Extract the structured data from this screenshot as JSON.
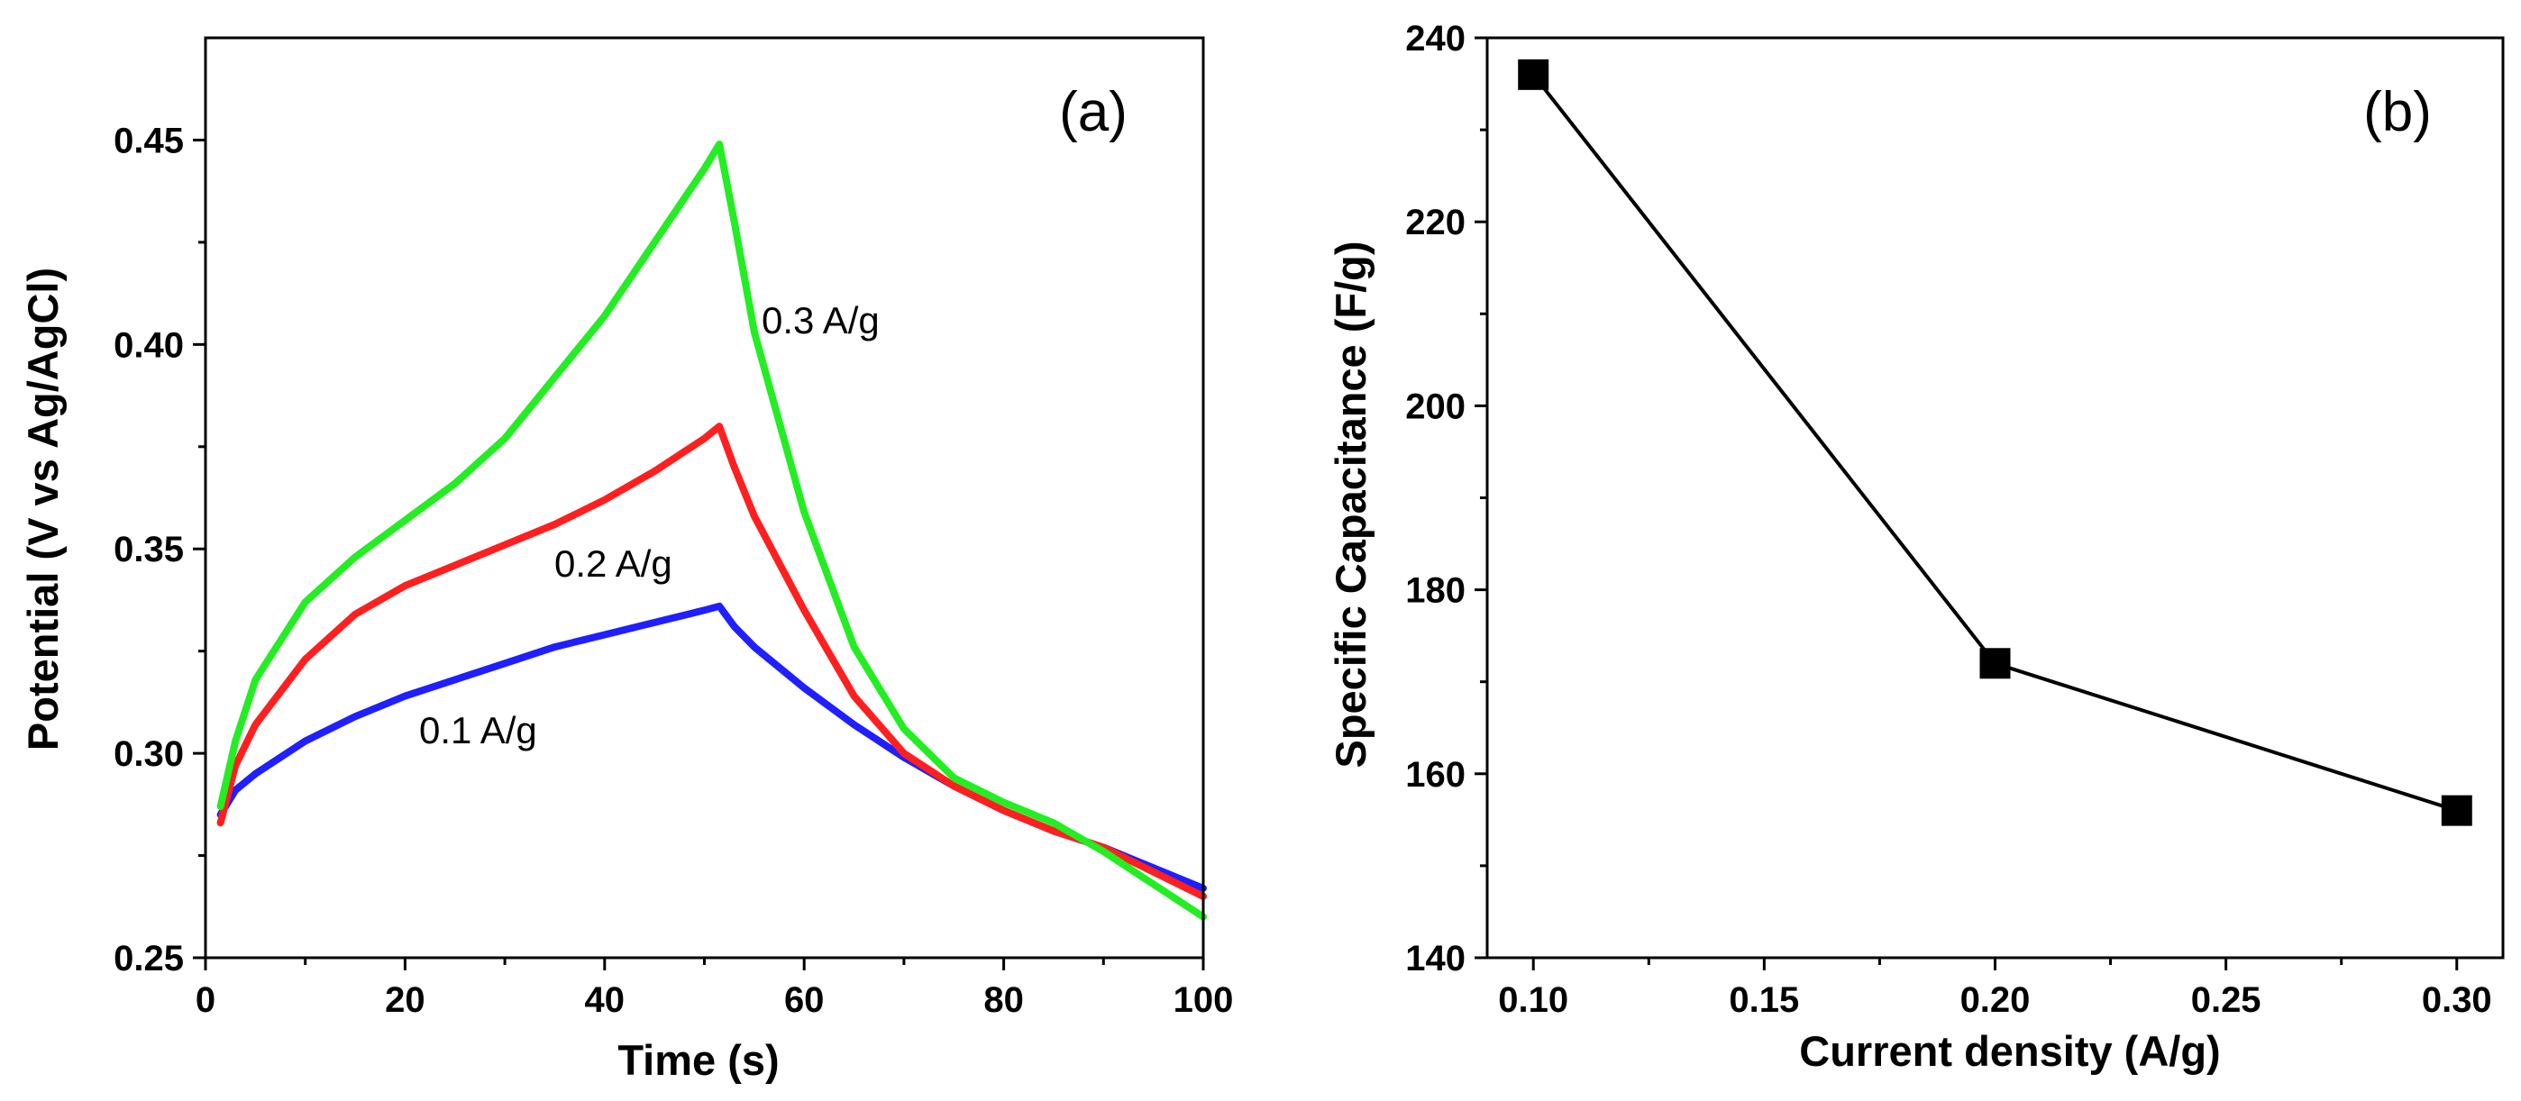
{
  "chart_data": [
    {
      "panel": "(a)",
      "type": "line",
      "xlabel": "Time (s)",
      "ylabel": "Potential (V vs Ag/AgCl)",
      "xlim": [
        0,
        100
      ],
      "ylim": [
        0.25,
        0.475
      ],
      "xticks": [
        0,
        20,
        40,
        60,
        80,
        100
      ],
      "yticks": [
        0.25,
        0.3,
        0.35,
        0.4,
        0.45
      ],
      "xtick_labels": [
        "0",
        "20",
        "40",
        "60",
        "80",
        "100"
      ],
      "ytick_labels": [
        "0.25",
        "0.30",
        "0.35",
        "0.40",
        "0.45"
      ],
      "series": [
        {
          "name": "0.1 A/g",
          "color": "#1f1fff",
          "x": [
            1.5,
            3,
            5,
            10,
            15,
            20,
            25,
            30,
            35,
            40,
            45,
            50,
            51.5,
            53,
            55,
            60,
            65,
            70,
            75,
            80,
            85,
            90,
            95,
            100
          ],
          "y": [
            0.285,
            0.291,
            0.295,
            0.303,
            0.309,
            0.314,
            0.318,
            0.322,
            0.326,
            0.329,
            0.332,
            0.335,
            0.336,
            0.331,
            0.326,
            0.316,
            0.307,
            0.299,
            0.292,
            0.286,
            0.281,
            0.277,
            0.272,
            0.267
          ]
        },
        {
          "name": "0.2 A/g",
          "color": "#ff1f1f",
          "x": [
            1.5,
            3,
            5,
            10,
            15,
            20,
            25,
            30,
            35,
            40,
            45,
            50,
            51.5,
            53,
            55,
            60,
            65,
            70,
            75,
            80,
            85,
            90,
            95,
            100
          ],
          "y": [
            0.283,
            0.297,
            0.307,
            0.323,
            0.334,
            0.341,
            0.346,
            0.351,
            0.356,
            0.362,
            0.369,
            0.377,
            0.38,
            0.37,
            0.358,
            0.335,
            0.314,
            0.3,
            0.292,
            0.286,
            0.281,
            0.277,
            0.271,
            0.265
          ]
        },
        {
          "name": "0.3 A/g",
          "color": "#22ee22",
          "x": [
            1.5,
            3,
            5,
            10,
            15,
            20,
            25,
            30,
            35,
            40,
            45,
            50,
            51.5,
            53,
            55,
            60,
            65,
            70,
            75,
            80,
            85,
            90,
            95,
            100
          ],
          "y": [
            0.287,
            0.303,
            0.318,
            0.337,
            0.348,
            0.357,
            0.366,
            0.377,
            0.392,
            0.407,
            0.425,
            0.443,
            0.449,
            0.43,
            0.403,
            0.359,
            0.326,
            0.306,
            0.294,
            0.288,
            0.283,
            0.276,
            0.268,
            0.26
          ]
        }
      ]
    },
    {
      "panel": "(b)",
      "type": "line",
      "xlabel": "Current density (A/g)",
      "ylabel": "Specific Capacitance (F/g)",
      "xlim": [
        0.09,
        0.31
      ],
      "ylim": [
        140,
        240
      ],
      "xticks": [
        0.1,
        0.15,
        0.2,
        0.25,
        0.3
      ],
      "yticks": [
        140,
        160,
        180,
        200,
        220,
        240
      ],
      "xtick_labels": [
        "0.10",
        "0.15",
        "0.20",
        "0.25",
        "0.30"
      ],
      "ytick_labels": [
        "140",
        "160",
        "180",
        "200",
        "220",
        "240"
      ],
      "series": [
        {
          "name": "Specific Capacitance",
          "color": "#000000",
          "marker": "square",
          "x": [
            0.1,
            0.2,
            0.3
          ],
          "y": [
            236,
            172,
            156
          ]
        }
      ]
    }
  ]
}
